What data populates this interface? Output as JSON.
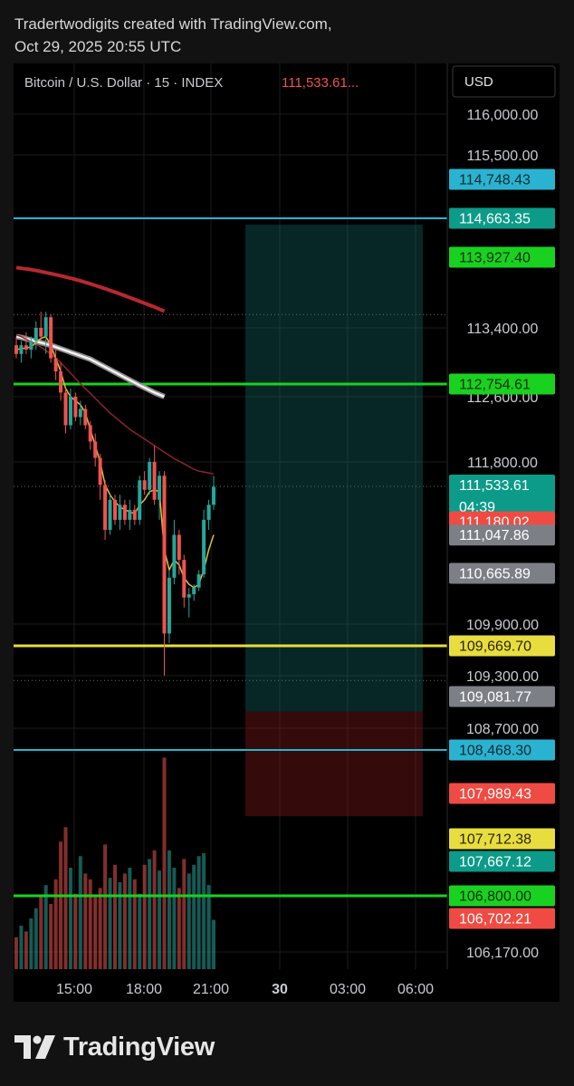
{
  "header": {
    "line1": "Tradertwodigits created with TradingView.com,",
    "line2": "Oct 29, 2025 20:55 UTC"
  },
  "legend": {
    "symbol": "Bitcoin / U.S. Dollar · 15 · INDEX",
    "price": "111,533.61..."
  },
  "currency_button": "USD",
  "footer": {
    "brand": "TradingView"
  },
  "colors": {
    "background": "#000000",
    "up": "#26a69a",
    "down": "#ef5350",
    "cyan": "#2ab3d0",
    "green": "#19d21f",
    "yellow": "#e8dd3f",
    "red_badge": "#ef4b43",
    "gray_badge": "#7d7f86",
    "teal_badge": "#0c9b89"
  },
  "chart_data": {
    "type": "candlestick",
    "x_ticks": [
      {
        "label": "15:00",
        "bold": false
      },
      {
        "label": "18:00",
        "bold": false
      },
      {
        "label": "21:00",
        "bold": false
      },
      {
        "label": "30",
        "bold": true
      },
      {
        "label": "03:00",
        "bold": false
      },
      {
        "label": "06:00",
        "bold": false
      }
    ],
    "y_ticks": [
      "116,000.00",
      "115,500.00",
      "113,400.00",
      "112,600.00",
      "111,800.00",
      "109,900.00",
      "109,300.00",
      "108,700.00",
      "106,170.00"
    ],
    "price_badges": [
      {
        "label": "114,748.43",
        "kind": "cyan"
      },
      {
        "label": "114,748.43",
        "kind": "cyan"
      },
      {
        "label": "114,663.35",
        "kind": "teal"
      },
      {
        "label": "113,927.40",
        "kind": "green"
      },
      {
        "label": "113,927.40",
        "kind": "green"
      },
      {
        "label": "112,754.61",
        "kind": "green"
      },
      {
        "label": "111,533.61",
        "kind": "teal",
        "sublabel": "04:39"
      },
      {
        "label": "111,180.02",
        "kind": "red"
      },
      {
        "label": "111,047.86",
        "kind": "gray"
      },
      {
        "label": "110,665.89",
        "kind": "gray"
      },
      {
        "label": "109,669.70",
        "kind": "yellow"
      },
      {
        "label": "109,081.77",
        "kind": "gray"
      },
      {
        "label": "108,468.30",
        "kind": "cyan"
      },
      {
        "label": "108,468.30",
        "kind": "cyan"
      },
      {
        "label": "107,989.43",
        "kind": "red"
      },
      {
        "label": "107,712.38",
        "kind": "yellow"
      },
      {
        "label": "107,712.38",
        "kind": "yellow"
      },
      {
        "label": "107,667.12",
        "kind": "teal"
      },
      {
        "label": "106,800.00",
        "kind": "green"
      },
      {
        "label": "106,702.21",
        "kind": "red"
      }
    ],
    "horizontal_levels": [
      {
        "price": 114663.35,
        "color": "cyan"
      },
      {
        "price": 112754.61,
        "color": "green"
      },
      {
        "price": 109669.7,
        "color": "yellow"
      },
      {
        "price": 108468.3,
        "color": "cyan"
      },
      {
        "price": 106800.0,
        "color": "green"
      }
    ],
    "position_tool": {
      "entry": 108900.0,
      "target": 114663.35,
      "stop": 107850.0
    },
    "candles": [
      {
        "o": 113200,
        "h": 113300,
        "l": 113050,
        "c": 113100
      },
      {
        "o": 113100,
        "h": 113250,
        "l": 113000,
        "c": 113200
      },
      {
        "o": 113200,
        "h": 113350,
        "l": 113100,
        "c": 113150
      },
      {
        "o": 113150,
        "h": 113300,
        "l": 113050,
        "c": 113250
      },
      {
        "o": 113250,
        "h": 113450,
        "l": 113150,
        "c": 113400
      },
      {
        "o": 113400,
        "h": 113520,
        "l": 113250,
        "c": 113300
      },
      {
        "o": 113300,
        "h": 113520,
        "l": 113100,
        "c": 113480
      },
      {
        "o": 113480,
        "h": 113500,
        "l": 113000,
        "c": 113050
      },
      {
        "o": 113050,
        "h": 113150,
        "l": 112800,
        "c": 112900
      },
      {
        "o": 112900,
        "h": 113000,
        "l": 112550,
        "c": 112650
      },
      {
        "o": 112650,
        "h": 112700,
        "l": 112150,
        "c": 112250
      },
      {
        "o": 112250,
        "h": 112700,
        "l": 112200,
        "c": 112600
      },
      {
        "o": 112600,
        "h": 112650,
        "l": 112300,
        "c": 112350
      },
      {
        "o": 112350,
        "h": 112550,
        "l": 112250,
        "c": 112450
      },
      {
        "o": 112450,
        "h": 112500,
        "l": 112200,
        "c": 112250
      },
      {
        "o": 112250,
        "h": 112300,
        "l": 111950,
        "c": 112050
      },
      {
        "o": 112050,
        "h": 112150,
        "l": 111750,
        "c": 111850
      },
      {
        "o": 111850,
        "h": 111900,
        "l": 111400,
        "c": 111550
      },
      {
        "o": 111550,
        "h": 111600,
        "l": 111000,
        "c": 111100
      },
      {
        "o": 111100,
        "h": 111450,
        "l": 111050,
        "c": 111400
      },
      {
        "o": 111400,
        "h": 111450,
        "l": 111150,
        "c": 111200
      },
      {
        "o": 111200,
        "h": 111450,
        "l": 111100,
        "c": 111350
      },
      {
        "o": 111350,
        "h": 111400,
        "l": 111150,
        "c": 111200
      },
      {
        "o": 111200,
        "h": 111400,
        "l": 111100,
        "c": 111300
      },
      {
        "o": 111300,
        "h": 111350,
        "l": 111150,
        "c": 111200
      },
      {
        "o": 111200,
        "h": 111650,
        "l": 111150,
        "c": 111600
      },
      {
        "o": 111600,
        "h": 111700,
        "l": 111450,
        "c": 111500
      },
      {
        "o": 111500,
        "h": 111850,
        "l": 111450,
        "c": 111800
      },
      {
        "o": 111800,
        "h": 112000,
        "l": 111350,
        "c": 111400
      },
      {
        "o": 111400,
        "h": 111700,
        "l": 111200,
        "c": 111650
      },
      {
        "o": 111650,
        "h": 111700,
        "l": 109300,
        "c": 109800
      },
      {
        "o": 109800,
        "h": 110700,
        "l": 109700,
        "c": 110600
      },
      {
        "o": 110600,
        "h": 111200,
        "l": 110500,
        "c": 111050
      },
      {
        "o": 111050,
        "h": 111100,
        "l": 110650,
        "c": 110800
      },
      {
        "o": 110800,
        "h": 110850,
        "l": 110150,
        "c": 110300
      },
      {
        "o": 110300,
        "h": 110450,
        "l": 110000,
        "c": 110350
      },
      {
        "o": 110350,
        "h": 110500,
        "l": 110250,
        "c": 110450
      },
      {
        "o": 110450,
        "h": 110700,
        "l": 110400,
        "c": 110650
      },
      {
        "o": 110650,
        "h": 111300,
        "l": 110600,
        "c": 111200
      },
      {
        "o": 111200,
        "h": 111400,
        "l": 111100,
        "c": 111350
      },
      {
        "o": 111350,
        "h": 111650,
        "l": 111300,
        "c": 111530
      }
    ],
    "volume": [
      0.22,
      0.3,
      0.26,
      0.35,
      0.42,
      0.5,
      0.58,
      0.45,
      0.62,
      0.88,
      0.98,
      0.7,
      0.52,
      0.78,
      0.66,
      0.62,
      0.5,
      0.56,
      0.86,
      0.63,
      0.72,
      0.6,
      0.66,
      0.7,
      0.62,
      0.52,
      0.72,
      0.76,
      0.82,
      0.68,
      1.46,
      0.82,
      0.7,
      0.56,
      0.76,
      0.66,
      0.72,
      0.78,
      0.8,
      0.58,
      0.34
    ],
    "sma_white": [
      113300,
      113290,
      113275,
      113260,
      113245,
      113230,
      113215,
      113200,
      113180,
      113160,
      113140,
      113120,
      113100,
      113080,
      113060,
      113040,
      113010,
      112980,
      112950,
      112920,
      112890,
      112860,
      112830,
      112800,
      112770,
      112740,
      112710,
      112680,
      112650,
      112625,
      112600
    ],
    "sma_red_thick": [
      113850,
      113845,
      113840,
      113835,
      113828,
      113821,
      113813,
      113805,
      113797,
      113789,
      113780,
      113771,
      113761,
      113751,
      113740,
      113729,
      113717,
      113705,
      113693,
      113680,
      113667,
      113654,
      113640,
      113626,
      113612,
      113598,
      113584,
      113570,
      113556,
      113540,
      113525
    ],
    "ema_dark_red": [
      113320,
      113300,
      113270,
      113240,
      113210,
      113180,
      113140,
      113100,
      113050,
      113000,
      112940,
      112880,
      112820,
      112760,
      112700,
      112640,
      112580,
      112520,
      112460,
      112400,
      112350,
      112300,
      112250,
      112200,
      112160,
      112120,
      112080,
      112040,
      112000,
      111960,
      111920,
      111880,
      111840,
      111810,
      111780,
      111750,
      111720,
      111700,
      111690,
      111680,
      111670
    ],
    "ema_yellow": [
      113150,
      113160,
      113170,
      113180,
      113230,
      113280,
      113300,
      113200,
      113050,
      112900,
      112700,
      112600,
      112550,
      112500,
      112400,
      112200,
      112000,
      111800,
      111550,
      111450,
      111380,
      111330,
      111300,
      111280,
      111260,
      111350,
      111400,
      111480,
      111500,
      111480,
      110900,
      110700,
      110800,
      110750,
      110600,
      110500,
      110450,
      110500,
      110700,
      110900,
      111050
    ]
  }
}
